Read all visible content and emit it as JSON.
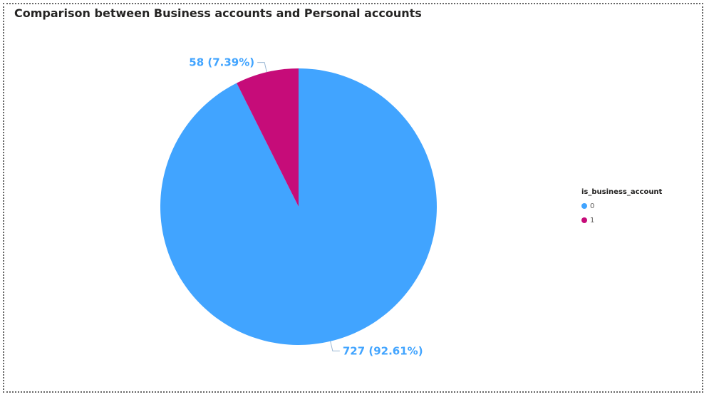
{
  "chart_data": {
    "type": "pie",
    "title": "Comparison between Business accounts and Personal accounts",
    "legend_title": "is_business_account",
    "legend_position": "right",
    "slices": [
      {
        "label": "0",
        "value": 727,
        "percent": "92.61%",
        "data_label": "727 (92.61%)",
        "color": "#41A4FF"
      },
      {
        "label": "1",
        "value": 58,
        "percent": "7.39%",
        "data_label": "58 (7.39%)",
        "color": "#C60C79"
      }
    ]
  },
  "colors": {
    "label_text": "#41A4FF",
    "leader_line": "#9BB7D4"
  }
}
